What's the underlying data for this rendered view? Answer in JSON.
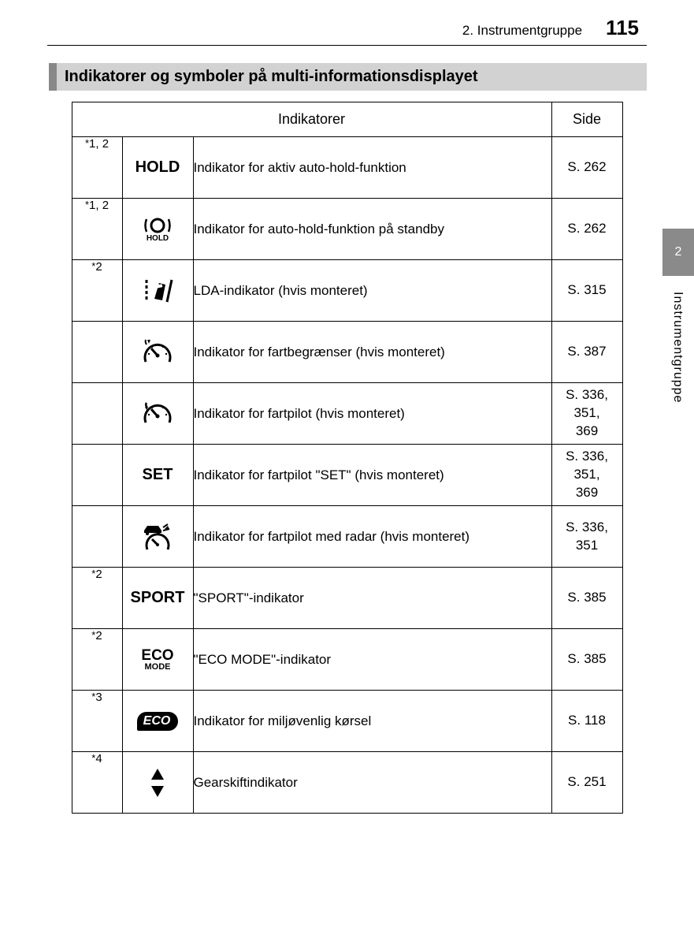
{
  "header": {
    "chapter": "2. Instrumentgruppe",
    "page_number": "115"
  },
  "section_heading": "Indikatorer og symboler på multi-informationsdisplayet",
  "side_tab": {
    "number": "2",
    "label": "Instrumentgruppe"
  },
  "table": {
    "header_indicators": "Indikatorer",
    "header_page": "Side",
    "rows": [
      {
        "note": "*1, 2",
        "icon_type": "text",
        "icon_text": "HOLD",
        "desc": "Indikator for aktiv auto-hold-funktion",
        "page": "S. 262"
      },
      {
        "note": "*1, 2",
        "icon_type": "hold-circle",
        "icon_sub": "HOLD",
        "desc": "Indikator for auto-hold-funktion på standby",
        "page": "S. 262"
      },
      {
        "note": "*2",
        "icon_type": "lda",
        "desc": "LDA-indikator (hvis monteret)",
        "page": "S. 315"
      },
      {
        "note": "",
        "icon_type": "speed-limit",
        "desc": "Indikator for fartbegrænser (hvis monteret)",
        "page": "S. 387"
      },
      {
        "note": "",
        "icon_type": "cruise",
        "desc": "Indikator for fartpilot (hvis monteret)",
        "page": "S. 336, 351, 369"
      },
      {
        "note": "",
        "icon_type": "text",
        "icon_text": "SET",
        "desc": "Indikator for fartpilot \"SET\" (hvis monteret)",
        "page": "S. 336, 351, 369"
      },
      {
        "note": "",
        "icon_type": "radar-cruise",
        "desc": "Indikator for fartpilot med radar (hvis monteret)",
        "page": "S. 336, 351"
      },
      {
        "note": "*2",
        "icon_type": "text",
        "icon_text": "SPORT",
        "desc": "\"SPORT\"-indikator",
        "page": "S. 385"
      },
      {
        "note": "*2",
        "icon_type": "eco-mode",
        "icon_text": "ECO",
        "icon_sub": "MODE",
        "desc": "\"ECO MODE\"-indikator",
        "page": "S. 385"
      },
      {
        "note": "*3",
        "icon_type": "eco-badge",
        "icon_text": "ECO",
        "desc": "Indikator for miljøvenlig kørsel",
        "page": "S. 118"
      },
      {
        "note": "*4",
        "icon_type": "gearshift",
        "desc": "Gearskiftindikator",
        "page": "S. 251"
      }
    ]
  },
  "colors": {
    "heading_bg": "#d2d2d2",
    "heading_bar": "#888888",
    "tab_bg": "#8a8a8a",
    "text": "#000000"
  }
}
